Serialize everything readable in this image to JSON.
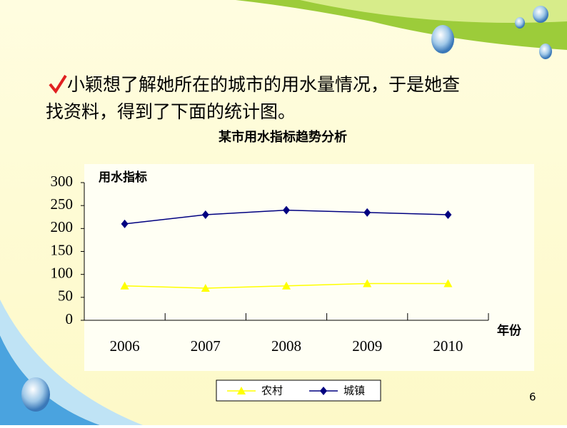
{
  "slide": {
    "lines": [
      "小颖想了解她所在的城市的用水量情况，于是她查",
      "找资料，得到了下面的统计图。"
    ],
    "page_number": "6"
  },
  "chart_data": {
    "type": "line",
    "title": "某市用水指标趋势分析",
    "y_label": "用水指标",
    "x_label": "年份",
    "categories": [
      "2006",
      "2007",
      "2008",
      "2009",
      "2010"
    ],
    "series": [
      {
        "name": "农村",
        "color": "#ffff00",
        "marker": "triangle",
        "values": [
          75,
          70,
          75,
          80,
          80
        ]
      },
      {
        "name": "城镇",
        "color": "#000080",
        "marker": "diamond",
        "values": [
          210,
          230,
          240,
          235,
          230
        ]
      }
    ],
    "ylim": [
      0,
      300
    ],
    "yticks": [
      0,
      50,
      100,
      150,
      200,
      250,
      300
    ],
    "legend": "bottom"
  }
}
